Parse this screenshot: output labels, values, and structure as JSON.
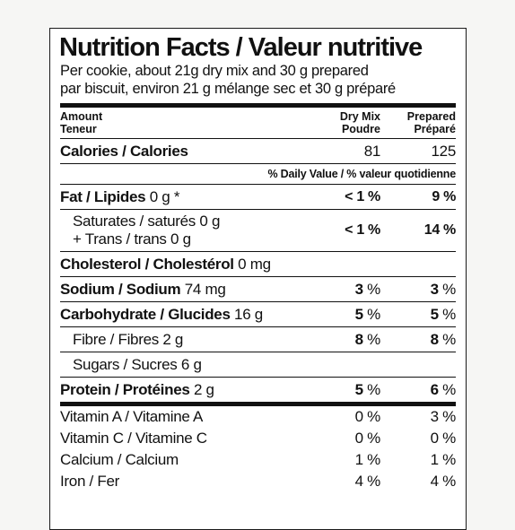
{
  "label": {
    "title": "Nutrition Facts / Valeur nutritive",
    "serving_line1": "Per cookie, about 21g dry mix and 30 g prepared",
    "serving_line2": "par biscuit, environ 21 g mélange sec et 30 g préparé",
    "header": {
      "amount": "Amount",
      "teneur": "Teneur",
      "col1_line1": "Dry Mix",
      "col1_line2": "Poudre",
      "col2_line1": "Prepared",
      "col2_line2": "Préparé"
    },
    "calories": {
      "name": "Calories / Calories",
      "dry": "81",
      "prepared": "125"
    },
    "dv_header": "% Daily Value / % valeur quotidienne",
    "nutrients": {
      "fat": {
        "name": "Fat / Lipides",
        "amount": "0 g *",
        "dry": "< 1 %",
        "prepared": "9 %"
      },
      "saturates": {
        "line1": "Saturates / saturés 0 g",
        "line2": "+ Trans / trans 0 g",
        "dry": "< 1 %",
        "prepared": "14 %"
      },
      "cholesterol": {
        "name": "Cholesterol / Cholestérol",
        "amount": "0 mg"
      },
      "sodium": {
        "name": "Sodium / Sodium",
        "amount": "74 mg",
        "dry_num": "3",
        "dry_pct": " %",
        "prep_num": "3",
        "prep_pct": " %"
      },
      "carbohydrate": {
        "name": "Carbohydrate / Glucides",
        "amount": "16 g",
        "dry_num": "5",
        "dry_pct": " %",
        "prep_num": "5",
        "prep_pct": " %"
      },
      "fibre": {
        "name": "Fibre / Fibres 2 g",
        "dry_num": "8",
        "dry_pct": " %",
        "prep_num": "8",
        "prep_pct": " %"
      },
      "sugars": {
        "name": "Sugars / Sucres 6 g"
      },
      "protein": {
        "name": "Protein / Protéines",
        "amount": "2 g",
        "dry_num": "5",
        "dry_pct": " %",
        "prep_num": "6",
        "prep_pct": " %"
      }
    },
    "vitamins": [
      {
        "name": "Vitamin A / Vitamine A",
        "dry": "0 %",
        "prepared": "3 %"
      },
      {
        "name": "Vitamin C / Vitamine C",
        "dry": "0 %",
        "prepared": "0 %"
      },
      {
        "name": "Calcium / Calcium",
        "dry": "1 %",
        "prepared": "1 %"
      },
      {
        "name": "Iron / Fer",
        "dry": "4 %",
        "prepared": "4 %"
      }
    ]
  }
}
